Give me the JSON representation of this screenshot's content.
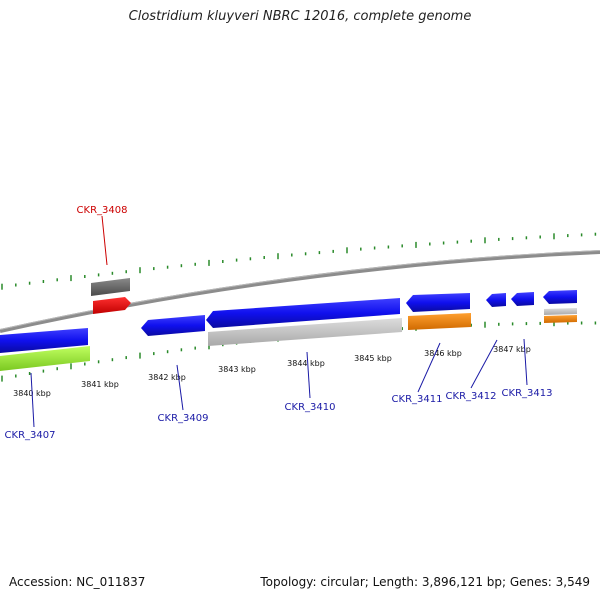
{
  "title": "Clostridium kluyveri NBRC 12016, complete genome",
  "footer": {
    "accession": "Accession: NC_011837",
    "stats": "Topology: circular; Length: 3,896,121 bp; Genes: 3,549"
  },
  "axis_labels": [
    "3840 kbp",
    "3841 kbp",
    "3842 kbp",
    "3843 kbp",
    "3844 kbp",
    "3845 kbp",
    "3846 kbp",
    "3847 kbp"
  ],
  "gene_labels": [
    {
      "text": "CKR_3407",
      "color": "#1a1aa6"
    },
    {
      "text": "CKR_3408",
      "color": "#cc0000"
    },
    {
      "text": "CKR_3409",
      "color": "#1a1aa6"
    },
    {
      "text": "CKR_3410",
      "color": "#1a1aa6"
    },
    {
      "text": "CKR_3411",
      "color": "#1a1aa6"
    },
    {
      "text": "CKR_3412",
      "color": "#1a1aa6"
    },
    {
      "text": "CKR_3413",
      "color": "#1a1aa6"
    }
  ],
  "colors": {
    "backbone": "#888888",
    "tick": "#2a8a2a",
    "gene_blue": "#1010ee",
    "gene_red": "#ee1111",
    "gene_gray": "#6e6e6e",
    "gene_light_gray": "#c4c4c4",
    "gene_orange": "#f08a0a",
    "gene_green": "#a4f23c"
  }
}
